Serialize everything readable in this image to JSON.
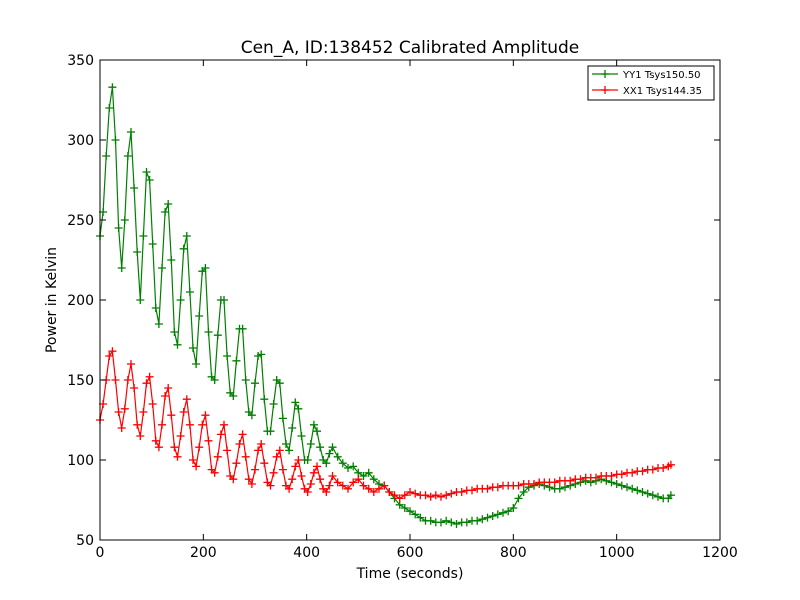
{
  "chart_data": {
    "type": "line",
    "title": "Cen_A, ID:138452 Calibrated Amplitude",
    "xlabel": "Time (seconds)",
    "ylabel": "Power in Kelvin",
    "xlim": [
      0,
      1200
    ],
    "ylim": [
      50,
      350
    ],
    "x_ticks": [
      0,
      200,
      400,
      600,
      800,
      1000,
      1200
    ],
    "y_ticks": [
      50,
      100,
      150,
      200,
      250,
      300,
      350
    ],
    "grid": false,
    "legend_position": "top-right",
    "marker": "plus",
    "series": [
      {
        "name": "YY1 Tsys150.50",
        "color": "#008000",
        "x": [
          0,
          6,
          12,
          18,
          24,
          30,
          36,
          42,
          48,
          54,
          60,
          66,
          72,
          78,
          84,
          90,
          96,
          102,
          108,
          114,
          120,
          126,
          132,
          138,
          144,
          150,
          156,
          162,
          168,
          174,
          180,
          186,
          192,
          198,
          204,
          210,
          216,
          222,
          228,
          234,
          240,
          246,
          252,
          258,
          264,
          270,
          276,
          282,
          288,
          294,
          300,
          306,
          312,
          318,
          324,
          330,
          336,
          342,
          348,
          354,
          360,
          366,
          372,
          378,
          384,
          390,
          396,
          402,
          408,
          414,
          420,
          426,
          432,
          438,
          444,
          450,
          460,
          470,
          480,
          490,
          500,
          510,
          520,
          530,
          540,
          550,
          560,
          570,
          580,
          590,
          600,
          610,
          620,
          630,
          640,
          650,
          660,
          670,
          680,
          690,
          700,
          710,
          720,
          730,
          740,
          750,
          760,
          770,
          780,
          790,
          800,
          810,
          820,
          830,
          840,
          850,
          860,
          870,
          880,
          890,
          900,
          910,
          920,
          930,
          940,
          950,
          960,
          970,
          980,
          990,
          1000,
          1010,
          1020,
          1030,
          1040,
          1050,
          1060,
          1070,
          1080,
          1090,
          1100,
          1105
        ],
        "y": [
          240,
          255,
          290,
          320,
          333,
          300,
          245,
          220,
          250,
          290,
          305,
          270,
          230,
          200,
          240,
          280,
          275,
          235,
          195,
          185,
          220,
          255,
          260,
          225,
          180,
          172,
          200,
          232,
          240,
          205,
          170,
          160,
          190,
          218,
          220,
          180,
          152,
          150,
          178,
          200,
          200,
          165,
          142,
          140,
          162,
          182,
          182,
          150,
          130,
          128,
          148,
          165,
          166,
          138,
          118,
          118,
          135,
          150,
          148,
          126,
          110,
          106,
          120,
          136,
          132,
          115,
          100,
          100,
          110,
          122,
          118,
          108,
          100,
          98,
          104,
          108,
          102,
          98,
          95,
          96,
          92,
          90,
          92,
          88,
          85,
          84,
          80,
          76,
          72,
          70,
          68,
          66,
          64,
          62,
          62,
          61,
          61,
          62,
          61,
          60,
          61,
          61,
          62,
          62,
          63,
          64,
          65,
          66,
          67,
          68,
          70,
          76,
          80,
          83,
          84,
          85,
          84,
          83,
          82,
          82,
          83,
          84,
          85,
          86,
          87,
          86,
          87,
          88,
          87,
          86,
          85,
          84,
          83,
          82,
          81,
          80,
          79,
          78,
          77,
          76,
          76,
          78
        ]
      },
      {
        "name": "XX1 Tsys144.35",
        "color": "#ff0000",
        "x": [
          0,
          6,
          12,
          18,
          24,
          30,
          36,
          42,
          48,
          54,
          60,
          66,
          72,
          78,
          84,
          90,
          96,
          102,
          108,
          114,
          120,
          126,
          132,
          138,
          144,
          150,
          156,
          162,
          168,
          174,
          180,
          186,
          192,
          198,
          204,
          210,
          216,
          222,
          228,
          234,
          240,
          246,
          252,
          258,
          264,
          270,
          276,
          282,
          288,
          294,
          300,
          306,
          312,
          318,
          324,
          330,
          336,
          342,
          348,
          354,
          360,
          366,
          372,
          378,
          384,
          390,
          396,
          402,
          408,
          414,
          420,
          426,
          432,
          438,
          444,
          450,
          460,
          470,
          480,
          490,
          500,
          510,
          520,
          530,
          540,
          550,
          560,
          570,
          580,
          590,
          600,
          610,
          620,
          630,
          640,
          650,
          660,
          670,
          680,
          690,
          700,
          710,
          720,
          730,
          740,
          750,
          760,
          770,
          780,
          790,
          800,
          810,
          820,
          830,
          840,
          850,
          860,
          870,
          880,
          890,
          900,
          910,
          920,
          930,
          940,
          950,
          960,
          970,
          980,
          990,
          1000,
          1010,
          1020,
          1030,
          1040,
          1050,
          1060,
          1070,
          1080,
          1090,
          1100,
          1105
        ],
        "y": [
          125,
          135,
          150,
          165,
          168,
          150,
          130,
          120,
          132,
          150,
          160,
          145,
          122,
          115,
          130,
          148,
          152,
          135,
          112,
          108,
          122,
          140,
          145,
          128,
          108,
          102,
          115,
          130,
          138,
          122,
          100,
          96,
          108,
          122,
          128,
          112,
          94,
          92,
          102,
          116,
          122,
          106,
          90,
          88,
          98,
          110,
          116,
          102,
          88,
          85,
          94,
          106,
          110,
          98,
          86,
          84,
          92,
          102,
          106,
          94,
          84,
          82,
          88,
          96,
          100,
          90,
          82,
          80,
          85,
          92,
          96,
          88,
          82,
          80,
          84,
          90,
          86,
          84,
          82,
          86,
          88,
          84,
          82,
          80,
          82,
          84,
          80,
          78,
          76,
          78,
          80,
          79,
          78,
          78,
          77,
          78,
          77,
          78,
          79,
          80,
          80,
          81,
          81,
          82,
          82,
          82,
          83,
          83,
          84,
          84,
          84,
          84,
          85,
          85,
          85,
          86,
          86,
          86,
          86,
          87,
          87,
          87,
          88,
          88,
          89,
          89,
          89,
          90,
          90,
          90,
          91,
          91,
          92,
          92,
          93,
          93,
          94,
          94,
          95,
          95,
          96,
          97
        ]
      }
    ]
  }
}
